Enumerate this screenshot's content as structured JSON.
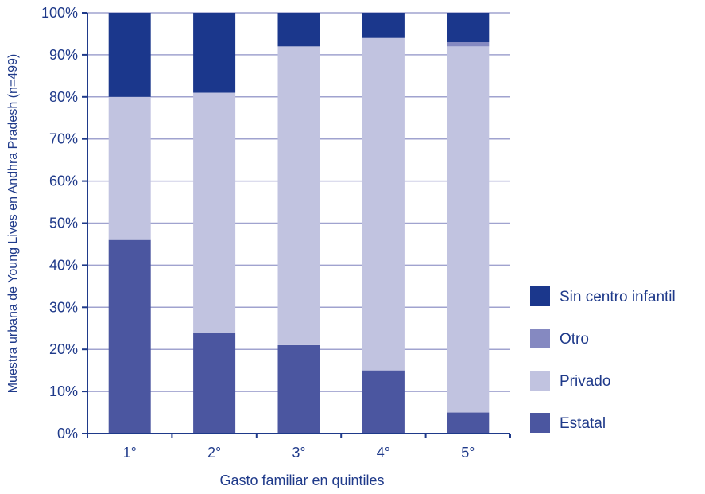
{
  "chart_data": {
    "type": "bar",
    "stacked": true,
    "categories": [
      "1°",
      "2°",
      "3°",
      "4°",
      "5°"
    ],
    "xlabel": "Gasto familiar en quintiles",
    "ylabel": "Muestra urbana de Young Lives en Andhra Pradesh (n=499)",
    "ylim": [
      0,
      100
    ],
    "yticks": [
      "0%",
      "10%",
      "20%",
      "30%",
      "40%",
      "50%",
      "60%",
      "70%",
      "80%",
      "90%",
      "100%"
    ],
    "grid": true,
    "legend_position": "right",
    "series": [
      {
        "name": "Estatal",
        "color": "#4b56a0",
        "values": [
          46,
          24,
          21,
          15,
          5
        ]
      },
      {
        "name": "Privado",
        "color": "#c1c3e0",
        "values": [
          34,
          57,
          71,
          79,
          87
        ]
      },
      {
        "name": "Otro",
        "color": "#8589c1",
        "values": [
          0,
          0,
          0,
          0,
          1
        ]
      },
      {
        "name": "Sin centro infantil",
        "color": "#1b378c",
        "values": [
          20,
          19,
          8,
          6,
          7
        ]
      }
    ],
    "legend_order": [
      "Sin centro infantil",
      "Otro",
      "Privado",
      "Estatal"
    ]
  },
  "colors": {
    "axis": "#1f3a8a",
    "grid": "#a0a3cf",
    "text": "#1f3a8a"
  }
}
